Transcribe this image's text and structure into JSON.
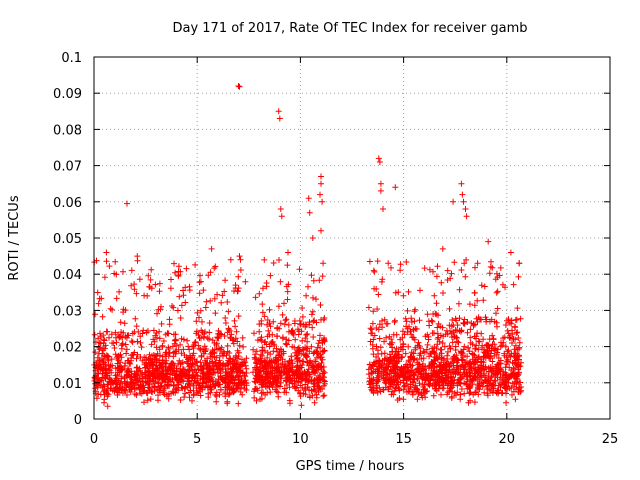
{
  "chart_data": {
    "type": "scatter",
    "title": "Day 171 of 2017, Rate Of TEC Index for receiver gamb",
    "xlabel": "GPS time / hours",
    "ylabel": "ROTI / TECUs",
    "xlim": [
      0,
      25
    ],
    "ylim": [
      0,
      0.1
    ],
    "xticks": [
      0,
      5,
      10,
      15,
      20,
      25
    ],
    "xtick_labels": [
      "0",
      "5",
      "10",
      "15",
      "20",
      "25"
    ],
    "yticks": [
      0,
      0.01,
      0.02,
      0.03,
      0.04,
      0.05,
      0.06,
      0.07,
      0.08,
      0.09,
      0.1
    ],
    "ytick_labels": [
      "0",
      "0.01",
      "0.02",
      "0.03",
      "0.04",
      "0.05",
      "0.06",
      "0.07",
      "0.08",
      "0.09",
      "0.1"
    ],
    "grid": true,
    "marker": "+",
    "color": "#ff0000",
    "series": [
      {
        "name": "ROTI",
        "segments": [
          {
            "start": 0.0,
            "end": 7.4,
            "base": 0.012,
            "spread": 0.006
          },
          {
            "start": 7.7,
            "end": 11.2,
            "base": 0.013,
            "spread": 0.007
          },
          {
            "start": 13.3,
            "end": 20.7,
            "base": 0.013,
            "spread": 0.007
          }
        ],
        "outliers": [
          [
            7.0,
            0.092
          ],
          [
            7.05,
            0.0918
          ],
          [
            8.95,
            0.085
          ],
          [
            9.0,
            0.083
          ],
          [
            10.4,
            0.061
          ],
          [
            10.45,
            0.057
          ],
          [
            11.0,
            0.067
          ],
          [
            11.0,
            0.065
          ],
          [
            10.95,
            0.062
          ],
          [
            11.05,
            0.06
          ],
          [
            9.05,
            0.058
          ],
          [
            9.1,
            0.056
          ],
          [
            1.6,
            0.0595
          ],
          [
            13.8,
            0.072
          ],
          [
            13.85,
            0.071
          ],
          [
            13.9,
            0.065
          ],
          [
            13.9,
            0.063
          ],
          [
            14.0,
            0.058
          ],
          [
            14.6,
            0.064
          ],
          [
            17.4,
            0.06
          ],
          [
            17.8,
            0.065
          ],
          [
            17.85,
            0.062
          ],
          [
            17.9,
            0.06
          ],
          [
            18.0,
            0.058
          ],
          [
            18.05,
            0.056
          ],
          [
            5.7,
            0.047
          ],
          [
            2.1,
            0.045
          ],
          [
            0.6,
            0.046
          ],
          [
            7.05,
            0.045
          ],
          [
            7.1,
            0.044
          ],
          [
            9.4,
            0.046
          ],
          [
            10.6,
            0.05
          ],
          [
            11.0,
            0.052
          ],
          [
            11.1,
            0.043
          ],
          [
            19.1,
            0.049
          ],
          [
            20.2,
            0.046
          ],
          [
            20.6,
            0.043
          ],
          [
            16.9,
            0.047
          ]
        ]
      }
    ]
  }
}
